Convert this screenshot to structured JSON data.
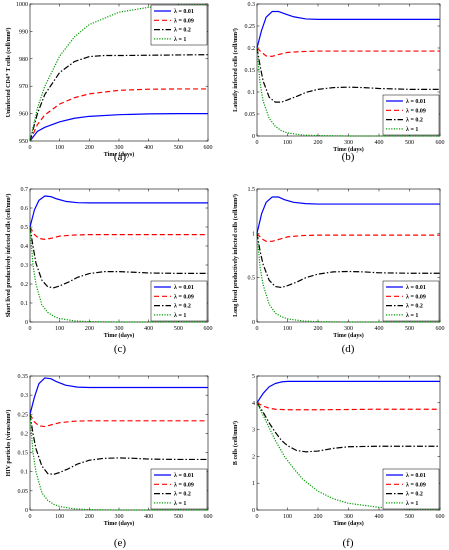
{
  "legend_labels": [
    "λ = 0.01",
    "λ = 0.09",
    "λ = 0.2",
    "λ = 1"
  ],
  "series_colors": [
    "#0000ff",
    "#ff0000",
    "#000000",
    "#009900"
  ],
  "chart_data": [
    {
      "panel": "(a)",
      "type": "line",
      "xlabel": "Time (days)",
      "ylabel": "Uninfected CD4⁺ T cells (cell/mm³)",
      "xlim": [
        0,
        600
      ],
      "ylim": [
        950,
        1000
      ],
      "xticks": [
        0,
        100,
        200,
        300,
        400,
        500,
        600
      ],
      "yticks": [
        950,
        960,
        970,
        980,
        990,
        1000
      ],
      "legend_pos": "top-right",
      "series": [
        {
          "name": "λ = 0.01",
          "x": [
            0,
            25,
            50,
            100,
            150,
            200,
            300,
            400,
            500,
            600
          ],
          "values": [
            950,
            953.5,
            955,
            957,
            958.3,
            959,
            959.6,
            959.9,
            960,
            960
          ]
        },
        {
          "name": "λ = 0.09",
          "x": [
            0,
            25,
            50,
            100,
            150,
            200,
            300,
            400,
            500,
            600
          ],
          "values": [
            950,
            956,
            959.5,
            963.5,
            965.8,
            967.2,
            968.5,
            968.9,
            969,
            969
          ]
        },
        {
          "name": "λ = 0.2",
          "x": [
            0,
            25,
            50,
            100,
            150,
            200,
            250,
            300,
            400,
            500,
            600
          ],
          "values": [
            950,
            960,
            967,
            975,
            979,
            980.8,
            981.2,
            981.2,
            981.3,
            981.4,
            981.5
          ]
        },
        {
          "name": "λ = 1",
          "x": [
            0,
            25,
            50,
            100,
            150,
            200,
            300,
            400,
            500,
            600
          ],
          "values": [
            950,
            962,
            970,
            981,
            988,
            992.5,
            997,
            998.8,
            999.5,
            999.8
          ]
        }
      ]
    },
    {
      "panel": "(b)",
      "type": "line",
      "xlabel": "Time (days)",
      "ylabel": "Latently infected cells (cell/mm³)",
      "xlim": [
        0,
        600
      ],
      "ylim": [
        0,
        0.3
      ],
      "xticks": [
        0,
        100,
        200,
        300,
        400,
        500,
        600
      ],
      "yticks": [
        0,
        0.05,
        0.1,
        0.15,
        0.2,
        0.25,
        0.3
      ],
      "ytick_labels": [
        "0",
        "0.05",
        "0.1",
        "0.15",
        "0.2",
        "0.25",
        "0.3"
      ],
      "legend_pos": "bottom-right",
      "series": [
        {
          "name": "λ = 0.01",
          "x": [
            0,
            15,
            30,
            50,
            70,
            90,
            120,
            160,
            200,
            300,
            400,
            500,
            600
          ],
          "values": [
            0.2,
            0.24,
            0.27,
            0.283,
            0.283,
            0.278,
            0.271,
            0.266,
            0.265,
            0.265,
            0.265,
            0.265,
            0.265
          ]
        },
        {
          "name": "λ = 0.09",
          "x": [
            0,
            15,
            30,
            50,
            70,
            100,
            150,
            200,
            300,
            400,
            500,
            600
          ],
          "values": [
            0.2,
            0.19,
            0.182,
            0.181,
            0.185,
            0.19,
            0.192,
            0.193,
            0.193,
            0.193,
            0.193,
            0.193
          ]
        },
        {
          "name": "λ = 0.2",
          "x": [
            0,
            10,
            20,
            40,
            60,
            80,
            100,
            130,
            160,
            200,
            250,
            300,
            350,
            400,
            500,
            600
          ],
          "values": [
            0.2,
            0.16,
            0.125,
            0.088,
            0.077,
            0.077,
            0.082,
            0.09,
            0.099,
            0.106,
            0.11,
            0.111,
            0.11,
            0.108,
            0.106,
            0.106
          ]
        },
        {
          "name": "λ = 1",
          "x": [
            0,
            10,
            20,
            40,
            60,
            80,
            100,
            150,
            200,
            300,
            400,
            600
          ],
          "values": [
            0.2,
            0.12,
            0.08,
            0.04,
            0.022,
            0.012,
            0.007,
            0.002,
            0.001,
            0,
            0,
            0
          ]
        }
      ]
    },
    {
      "panel": "(c)",
      "type": "line",
      "xlabel": "Time (days)",
      "ylabel": "Short lived productively infected cells (cell/mm³)",
      "xlim": [
        0,
        600
      ],
      "ylim": [
        0,
        0.7
      ],
      "xticks": [
        0,
        100,
        200,
        300,
        400,
        500,
        600
      ],
      "yticks": [
        0,
        0.1,
        0.2,
        0.3,
        0.4,
        0.5,
        0.6,
        0.7
      ],
      "ytick_labels": [
        "0",
        "0.1",
        "0.2",
        "0.3",
        "0.4",
        "0.5",
        "0.6",
        "0.7"
      ],
      "legend_pos": "bottom-right",
      "series": [
        {
          "name": "λ = 0.01",
          "x": [
            0,
            15,
            30,
            50,
            70,
            90,
            120,
            160,
            200,
            300,
            400,
            500,
            600
          ],
          "values": [
            0.5,
            0.59,
            0.64,
            0.663,
            0.66,
            0.648,
            0.635,
            0.628,
            0.627,
            0.627,
            0.627,
            0.627,
            0.627
          ]
        },
        {
          "name": "λ = 0.09",
          "x": [
            0,
            15,
            30,
            50,
            70,
            100,
            150,
            200,
            300,
            400,
            500,
            600
          ],
          "values": [
            0.5,
            0.46,
            0.44,
            0.435,
            0.44,
            0.452,
            0.458,
            0.46,
            0.46,
            0.46,
            0.46,
            0.46
          ]
        },
        {
          "name": "λ = 0.2",
          "x": [
            0,
            10,
            20,
            40,
            60,
            80,
            100,
            130,
            160,
            200,
            250,
            300,
            350,
            400,
            500,
            600
          ],
          "values": [
            0.5,
            0.4,
            0.31,
            0.22,
            0.185,
            0.18,
            0.19,
            0.21,
            0.235,
            0.255,
            0.265,
            0.265,
            0.262,
            0.258,
            0.256,
            0.256
          ]
        },
        {
          "name": "λ = 1",
          "x": [
            0,
            10,
            20,
            40,
            60,
            80,
            100,
            150,
            200,
            300,
            400,
            600
          ],
          "values": [
            0.5,
            0.3,
            0.2,
            0.09,
            0.05,
            0.03,
            0.018,
            0.006,
            0.002,
            0,
            0,
            0
          ]
        }
      ]
    },
    {
      "panel": "(d)",
      "type": "line",
      "xlabel": "Time (days)",
      "ylabel": "Long lived productively infected cells (cell/mm³)",
      "xlim": [
        0,
        600
      ],
      "ylim": [
        0,
        1.5
      ],
      "xticks": [
        0,
        100,
        200,
        300,
        400,
        500,
        600
      ],
      "yticks": [
        0,
        0.5,
        1,
        1.5
      ],
      "ytick_labels": [
        "0",
        "0.5",
        "1",
        "1.5"
      ],
      "legend_pos": "bottom-right",
      "series": [
        {
          "name": "λ = 0.01",
          "x": [
            0,
            15,
            30,
            50,
            70,
            90,
            120,
            160,
            200,
            300,
            400,
            500,
            600
          ],
          "values": [
            1.0,
            1.22,
            1.35,
            1.41,
            1.41,
            1.38,
            1.35,
            1.335,
            1.33,
            1.33,
            1.33,
            1.33,
            1.33
          ]
        },
        {
          "name": "λ = 0.09",
          "x": [
            0,
            15,
            30,
            50,
            70,
            100,
            150,
            200,
            300,
            400,
            500,
            600
          ],
          "values": [
            1.0,
            0.94,
            0.91,
            0.91,
            0.93,
            0.96,
            0.975,
            0.98,
            0.98,
            0.98,
            0.98,
            0.98
          ]
        },
        {
          "name": "λ = 0.2",
          "x": [
            0,
            10,
            20,
            40,
            60,
            80,
            100,
            130,
            160,
            200,
            250,
            300,
            350,
            400,
            500,
            600
          ],
          "values": [
            1.0,
            0.8,
            0.65,
            0.47,
            0.4,
            0.39,
            0.41,
            0.45,
            0.5,
            0.54,
            0.565,
            0.57,
            0.565,
            0.555,
            0.55,
            0.55
          ]
        },
        {
          "name": "λ = 1",
          "x": [
            0,
            10,
            20,
            40,
            60,
            80,
            100,
            150,
            200,
            300,
            400,
            600
          ],
          "values": [
            1.0,
            0.62,
            0.42,
            0.2,
            0.1,
            0.06,
            0.035,
            0.012,
            0.004,
            0,
            0,
            0
          ]
        }
      ]
    },
    {
      "panel": "(e)",
      "type": "line",
      "xlabel": "Time (days)",
      "ylabel": "HIV particles (virus/mm³)",
      "xlim": [
        0,
        600
      ],
      "ylim": [
        0,
        0.35
      ],
      "xticks": [
        0,
        100,
        200,
        300,
        400,
        500,
        600
      ],
      "yticks": [
        0,
        0.05,
        0.1,
        0.15,
        0.2,
        0.25,
        0.3,
        0.35
      ],
      "ytick_labels": [
        "0",
        "0.05",
        "0.1",
        "0.15",
        "0.2",
        "0.25",
        "0.3",
        "0.35"
      ],
      "legend_pos": "bottom-right",
      "series": [
        {
          "name": "λ = 0.01",
          "x": [
            0,
            15,
            30,
            50,
            70,
            90,
            120,
            160,
            200,
            300,
            400,
            500,
            600
          ],
          "values": [
            0.25,
            0.295,
            0.33,
            0.345,
            0.343,
            0.335,
            0.326,
            0.321,
            0.32,
            0.32,
            0.32,
            0.32,
            0.32
          ]
        },
        {
          "name": "λ = 0.09",
          "x": [
            0,
            15,
            30,
            50,
            70,
            100,
            150,
            200,
            300,
            400,
            500,
            600
          ],
          "values": [
            0.25,
            0.23,
            0.22,
            0.218,
            0.222,
            0.228,
            0.232,
            0.233,
            0.233,
            0.233,
            0.233,
            0.233
          ]
        },
        {
          "name": "λ = 0.2",
          "x": [
            0,
            10,
            20,
            40,
            60,
            80,
            100,
            130,
            160,
            200,
            250,
            300,
            350,
            400,
            500,
            600
          ],
          "values": [
            0.25,
            0.2,
            0.16,
            0.115,
            0.095,
            0.093,
            0.098,
            0.108,
            0.12,
            0.13,
            0.135,
            0.136,
            0.135,
            0.133,
            0.132,
            0.132
          ]
        },
        {
          "name": "λ = 1",
          "x": [
            0,
            10,
            20,
            40,
            60,
            80,
            100,
            150,
            200,
            300,
            400,
            600
          ],
          "values": [
            0.25,
            0.15,
            0.1,
            0.045,
            0.025,
            0.015,
            0.009,
            0.003,
            0.001,
            0,
            0,
            0
          ]
        }
      ]
    },
    {
      "panel": "(f)",
      "type": "line",
      "xlabel": "Time (days)",
      "ylabel": "B cells (cell/mm³)",
      "xlim": [
        0,
        600
      ],
      "ylim": [
        0,
        5
      ],
      "xticks": [
        0,
        100,
        200,
        300,
        400,
        500,
        600
      ],
      "yticks": [
        0,
        1,
        2,
        3,
        4,
        5
      ],
      "ytick_labels": [
        "0",
        "1",
        "2",
        "3",
        "4",
        "5"
      ],
      "legend_pos": "bottom-right",
      "series": [
        {
          "name": "λ = 0.01",
          "x": [
            0,
            20,
            40,
            60,
            80,
            100,
            150,
            200,
            300,
            400,
            500,
            600
          ],
          "values": [
            4.0,
            4.35,
            4.6,
            4.72,
            4.78,
            4.8,
            4.8,
            4.8,
            4.8,
            4.8,
            4.8,
            4.8
          ]
        },
        {
          "name": "λ = 0.09",
          "x": [
            0,
            20,
            40,
            60,
            100,
            150,
            200,
            300,
            400,
            500,
            600
          ],
          "values": [
            4.0,
            3.88,
            3.8,
            3.76,
            3.74,
            3.74,
            3.74,
            3.75,
            3.76,
            3.76,
            3.76
          ]
        },
        {
          "name": "λ = 0.2",
          "x": [
            0,
            20,
            40,
            60,
            80,
            100,
            130,
            160,
            200,
            250,
            300,
            400,
            500,
            600
          ],
          "values": [
            4.0,
            3.65,
            3.25,
            2.9,
            2.6,
            2.4,
            2.22,
            2.17,
            2.2,
            2.3,
            2.36,
            2.38,
            2.38,
            2.38
          ]
        },
        {
          "name": "λ = 1",
          "x": [
            0,
            30,
            60,
            90,
            120,
            150,
            200,
            250,
            300,
            400,
            500,
            600
          ],
          "values": [
            4.0,
            3.3,
            2.6,
            2.0,
            1.55,
            1.15,
            0.7,
            0.42,
            0.25,
            0.1,
            0.04,
            0.02
          ]
        }
      ]
    }
  ]
}
